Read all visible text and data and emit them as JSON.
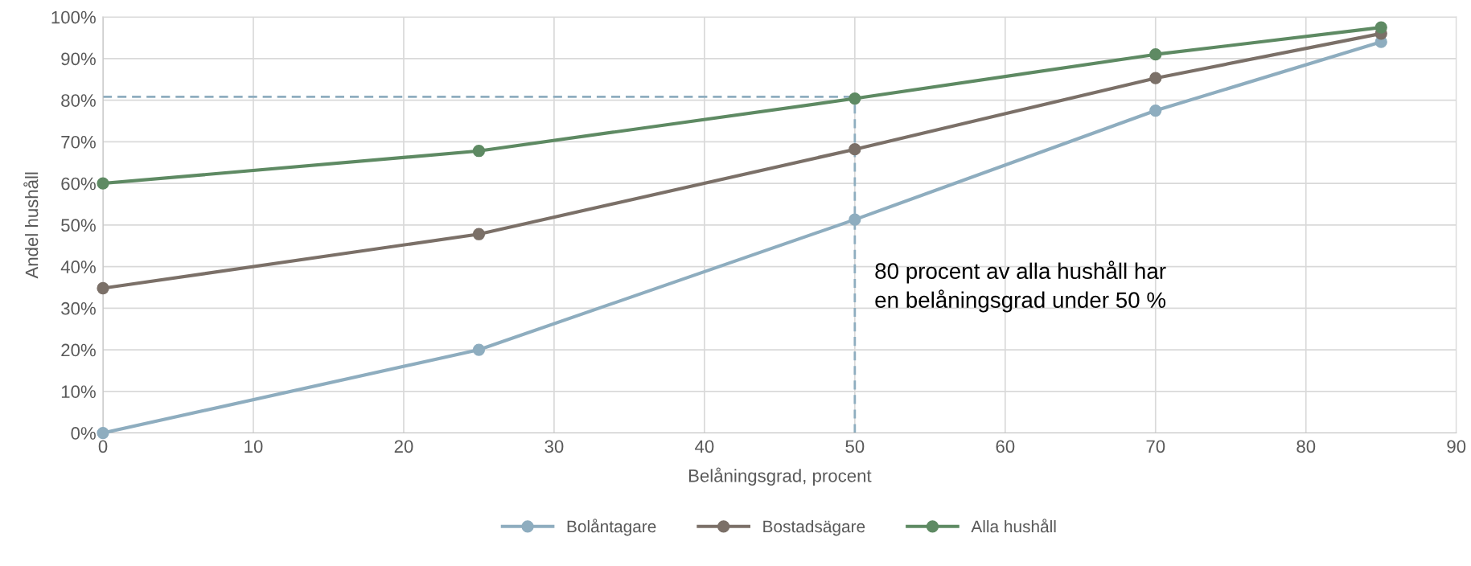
{
  "chart_data": {
    "type": "line",
    "xlabel": "Belåningsgrad, procent",
    "ylabel": "Andel hushåll",
    "xlim": [
      0,
      90
    ],
    "xticks": [
      0,
      10,
      20,
      30,
      40,
      50,
      60,
      70,
      80,
      90
    ],
    "ylim": [
      0,
      100
    ],
    "yticks": [
      {
        "value": 0,
        "label": "0%"
      },
      {
        "value": 10,
        "label": "10%"
      },
      {
        "value": 20,
        "label": "20%"
      },
      {
        "value": 30,
        "label": "30%"
      },
      {
        "value": 40,
        "label": "40%"
      },
      {
        "value": 50,
        "label": "50%"
      },
      {
        "value": 60,
        "label": "60%"
      },
      {
        "value": 70,
        "label": "70%"
      },
      {
        "value": 80,
        "label": "80%"
      },
      {
        "value": 90,
        "label": "90%"
      },
      {
        "value": 100,
        "label": "100%"
      }
    ],
    "x": [
      0,
      25,
      50,
      70,
      85
    ],
    "grid": true,
    "legend": "bottom",
    "marker": "circle",
    "line_style": "solid",
    "series": [
      {
        "name": "Bolåntagare",
        "color": "#8eadbf",
        "values": [
          0,
          20,
          51.3,
          77.5,
          94
        ]
      },
      {
        "name": "Bostadsägare",
        "color": "#7b7068",
        "values": [
          34.8,
          47.8,
          68.2,
          85.3,
          96
        ]
      },
      {
        "name": "Alla hushåll",
        "color": "#5e8a63",
        "values": [
          60,
          67.8,
          80.4,
          91,
          97.5
        ]
      }
    ],
    "ref_lines": [
      {
        "axis": "y",
        "value": 80.8,
        "color": "#8eadbf",
        "line_style": "dashed"
      },
      {
        "axis": "x",
        "value": 50,
        "color": "#8eadbf",
        "line_style": "dashed"
      }
    ],
    "annotations": [
      "80 procent av alla hushåll har\nen belåningsgrad under 50 %"
    ]
  }
}
